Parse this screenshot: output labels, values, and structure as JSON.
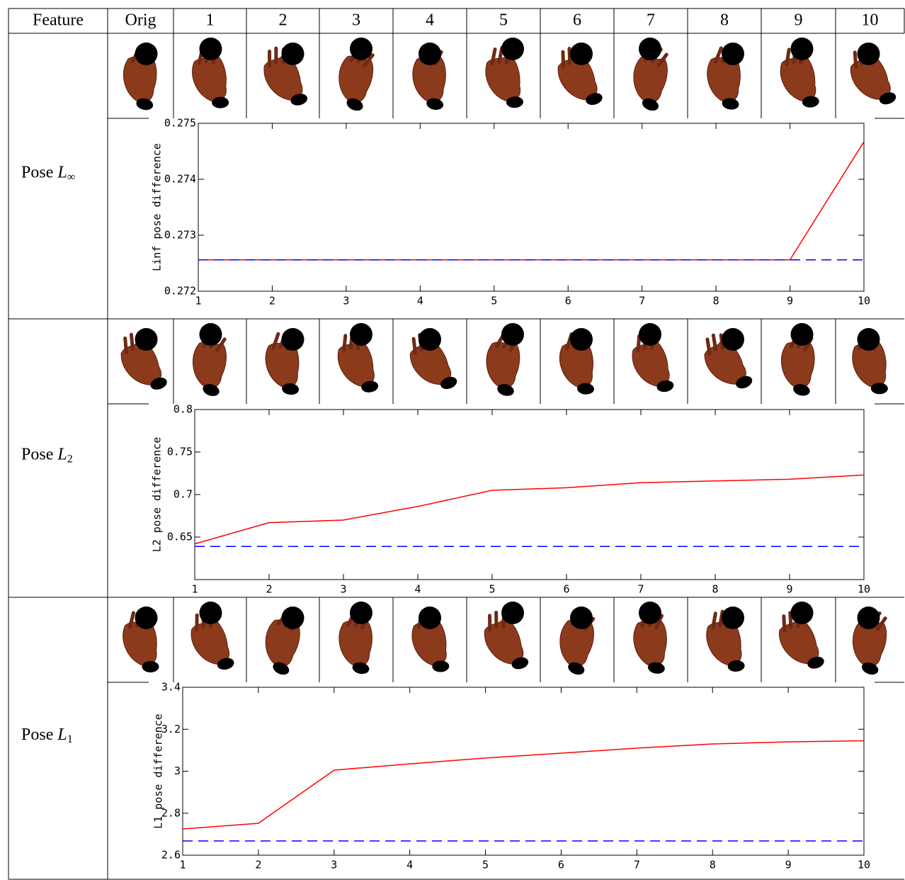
{
  "table": {
    "header": [
      "Feature",
      "Orig",
      "1",
      "2",
      "3",
      "4",
      "5",
      "6",
      "7",
      "8",
      "9",
      "10"
    ],
    "rows": [
      {
        "label": "Pose",
        "symbol": "L",
        "subscript": "∞"
      },
      {
        "label": "Pose",
        "symbol": "L",
        "subscript": "2"
      },
      {
        "label": "Pose",
        "symbol": "L",
        "subscript": "1"
      }
    ]
  },
  "chart_data": [
    {
      "type": "line",
      "y_label": "Linf pose difference",
      "x": [
        1,
        2,
        3,
        4,
        5,
        6,
        7,
        8,
        9,
        10
      ],
      "xlim": [
        1,
        10
      ],
      "xticks": [
        1,
        2,
        3,
        4,
        5,
        6,
        7,
        8,
        9,
        10
      ],
      "ylim": [
        0.272,
        0.275
      ],
      "yticks": [
        0.272,
        0.273,
        0.274,
        0.275
      ],
      "grid": false,
      "series": [
        {
          "color": "#ff0000",
          "style": "solid",
          "values": [
            0.27256,
            0.27256,
            0.27256,
            0.27256,
            0.27256,
            0.27256,
            0.27256,
            0.27256,
            0.27256,
            0.27467
          ]
        },
        {
          "color": "#0000ff",
          "style": "dashed",
          "values": [
            0.27256,
            0.27256,
            0.27256,
            0.27256,
            0.27256,
            0.27256,
            0.27256,
            0.27256,
            0.27256,
            0.27256
          ]
        }
      ]
    },
    {
      "type": "line",
      "y_label": "L2 pose difference",
      "x": [
        1,
        2,
        3,
        4,
        5,
        6,
        7,
        8,
        9,
        10
      ],
      "xlim": [
        1,
        10
      ],
      "xticks": [
        1,
        2,
        3,
        4,
        5,
        6,
        7,
        8,
        9,
        10
      ],
      "ylim": [
        0.6,
        0.8
      ],
      "yticks": [
        0.65,
        0.7,
        0.75,
        0.8
      ],
      "grid": false,
      "series": [
        {
          "color": "#ff0000",
          "style": "solid",
          "values": [
            0.642,
            0.667,
            0.67,
            0.686,
            0.705,
            0.708,
            0.714,
            0.716,
            0.718,
            0.723
          ]
        },
        {
          "color": "#0000ff",
          "style": "dashed",
          "values": [
            0.639,
            0.639,
            0.639,
            0.639,
            0.639,
            0.639,
            0.639,
            0.639,
            0.639,
            0.639
          ]
        }
      ]
    },
    {
      "type": "line",
      "y_label": "L1 pose difference",
      "x": [
        1,
        2,
        3,
        4,
        5,
        6,
        7,
        8,
        9,
        10
      ],
      "xlim": [
        1,
        10
      ],
      "xticks": [
        1,
        2,
        3,
        4,
        5,
        6,
        7,
        8,
        9,
        10
      ],
      "ylim": [
        2.6,
        3.4
      ],
      "yticks": [
        2.6,
        2.8,
        3,
        3.2,
        3.4
      ],
      "grid": false,
      "series": [
        {
          "color": "#ff0000",
          "style": "solid",
          "values": [
            2.725,
            2.752,
            3.005,
            3.035,
            3.063,
            3.086,
            3.11,
            3.13,
            3.14,
            3.145
          ]
        },
        {
          "color": "#0000ff",
          "style": "dashed",
          "values": [
            2.668,
            2.668,
            2.668,
            2.668,
            2.668,
            2.668,
            2.668,
            2.668,
            2.668,
            2.668
          ]
        }
      ]
    }
  ]
}
